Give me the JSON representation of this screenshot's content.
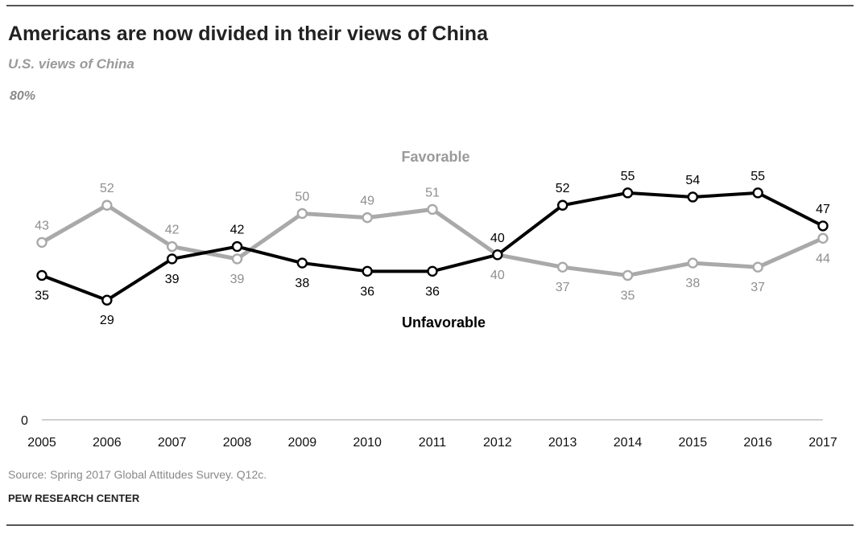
{
  "header": {
    "title": "Americans are now divided in their views of China",
    "subtitle": "U.S. views of China"
  },
  "footer": {
    "source": "Source: Spring 2017 Global Attitudes Survey. Q12c.",
    "credit": "PEW RESEARCH CENTER"
  },
  "chart_data": {
    "type": "line",
    "title": "Americans are now divided in their views of China",
    "subtitle": "U.S. views of China",
    "x": [
      "2005",
      "2006",
      "2007",
      "2008",
      "2009",
      "2010",
      "2011",
      "2012",
      "2013",
      "2014",
      "2015",
      "2016",
      "2017"
    ],
    "ylim": [
      0,
      80
    ],
    "y_tick_labels": [
      "0",
      "80%"
    ],
    "grid": false,
    "series": [
      {
        "name": "Favorable",
        "color": "#a9a9a9",
        "label_color": "#8f8f8f",
        "values": [
          43,
          52,
          42,
          39,
          50,
          49,
          51,
          40,
          37,
          35,
          38,
          37,
          44
        ]
      },
      {
        "name": "Unfavorable",
        "color": "#000000",
        "label_color": "#000000",
        "values": [
          35,
          29,
          39,
          42,
          38,
          36,
          36,
          40,
          52,
          55,
          54,
          55,
          47
        ]
      }
    ]
  }
}
